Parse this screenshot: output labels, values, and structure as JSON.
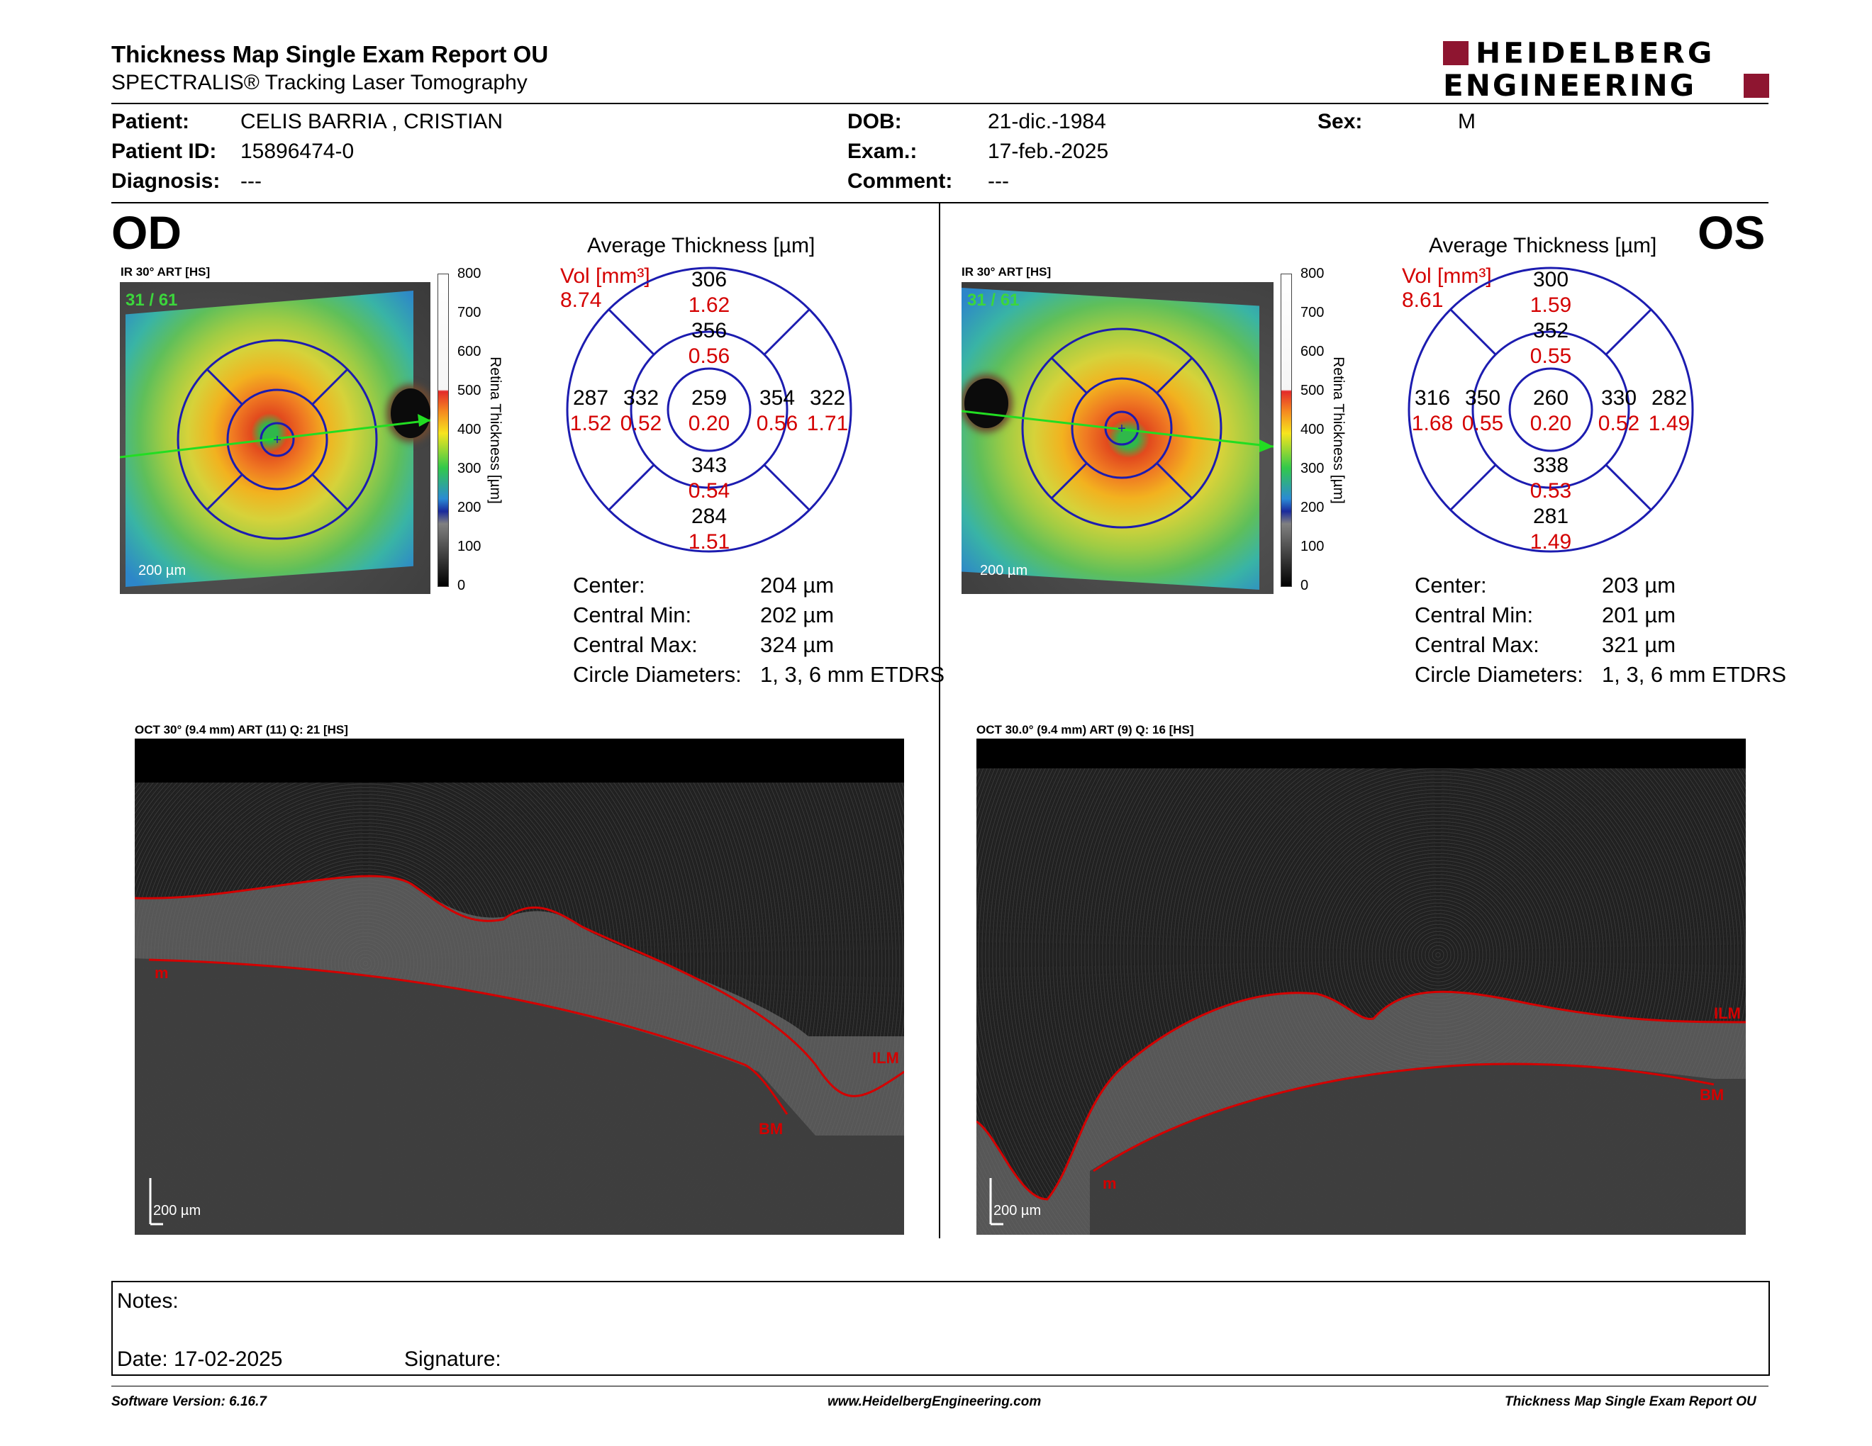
{
  "header": {
    "title": "Thickness Map Single Exam Report OU",
    "subtitle": "SPECTRALIS® Tracking Laser Tomography",
    "logo_line1": "HEIDELBERG",
    "logo_line2": "ENGINEERING"
  },
  "patient": {
    "patient_label": "Patient:",
    "patient_value": "CELIS BARRIA , CRISTIAN",
    "id_label": "Patient ID:",
    "id_value": "15896474-0",
    "diagnosis_label": "Diagnosis:",
    "diagnosis_value": "---",
    "dob_label": "DOB:",
    "dob_value": "21-dic.-1984",
    "exam_label": "Exam.:",
    "exam_value": "17-feb.-2025",
    "comment_label": "Comment:",
    "comment_value": "---",
    "sex_label": "Sex:",
    "sex_value": "M"
  },
  "colorbar": {
    "title": "Retina Thickness [µm]",
    "ticks": [
      "800",
      "700",
      "600",
      "500",
      "400",
      "300",
      "200",
      "100",
      "0"
    ]
  },
  "od": {
    "eye": "OD",
    "ir_label": "IR 30° ART [HS]",
    "frame": "31 / 61",
    "scale": "200 µm",
    "avg_title": "Average Thickness [µm]",
    "vol_label": "Vol [mm³]",
    "vol_value": "8.74",
    "grid": {
      "outer_sup": "306",
      "outer_sup_vol": "1.62",
      "inner_sup": "356",
      "inner_sup_vol": "0.56",
      "outer_left": "287",
      "outer_left_vol": "1.52",
      "inner_left": "332",
      "inner_left_vol": "0.52",
      "center": "259",
      "center_vol": "0.20",
      "inner_right": "354",
      "inner_right_vol": "0.56",
      "outer_right": "322",
      "outer_right_vol": "1.71",
      "inner_inf": "343",
      "inner_inf_vol": "0.54",
      "outer_inf": "284",
      "outer_inf_vol": "1.51"
    },
    "stats": {
      "center_label": "Center:",
      "center_value": "204 µm",
      "min_label": "Central Min:",
      "min_value": "202 µm",
      "max_label": "Central Max:",
      "max_value": "324 µm",
      "diam_label": "Circle Diameters:",
      "diam_value": "1, 3, 6 mm ETDRS"
    },
    "oct_label": "OCT 30° (9.4 mm) ART (11) Q: 21 [HS]",
    "oct_scale": "200 µm",
    "tag_ilm": "ILM",
    "tag_bm": "BM",
    "tag_m": "m"
  },
  "os": {
    "eye": "OS",
    "ir_label": "IR 30° ART [HS]",
    "frame": "31 / 61",
    "scale": "200 µm",
    "avg_title": "Average Thickness [µm]",
    "vol_label": "Vol [mm³]",
    "vol_value": "8.61",
    "grid": {
      "outer_sup": "300",
      "outer_sup_vol": "1.59",
      "inner_sup": "352",
      "inner_sup_vol": "0.55",
      "outer_left": "316",
      "outer_left_vol": "1.68",
      "inner_left": "350",
      "inner_left_vol": "0.55",
      "center": "260",
      "center_vol": "0.20",
      "inner_right": "330",
      "inner_right_vol": "0.52",
      "outer_right": "282",
      "outer_right_vol": "1.49",
      "inner_inf": "338",
      "inner_inf_vol": "0.53",
      "outer_inf": "281",
      "outer_inf_vol": "1.49"
    },
    "stats": {
      "center_label": "Center:",
      "center_value": "203 µm",
      "min_label": "Central Min:",
      "min_value": "201 µm",
      "max_label": "Central Max:",
      "max_value": "321 µm",
      "diam_label": "Circle Diameters:",
      "diam_value": "1, 3, 6 mm ETDRS"
    },
    "oct_label": "OCT 30.0° (9.4 mm) ART (9) Q: 16 [HS]",
    "oct_scale": "200 µm",
    "tag_ilm": "ILM",
    "tag_bm": "BM",
    "tag_m": "m"
  },
  "notes": {
    "notes_label": "Notes:",
    "date_label": "Date: 17-02-2025",
    "signature_label": "Signature:"
  },
  "footer": {
    "version": "Software Version: 6.16.7",
    "url": "www.HeidelbergEngineering.com",
    "report": "Thickness Map Single Exam Report OU"
  },
  "colors": {
    "accent_red": "#d40000",
    "grid_blue": "#1c1cb0",
    "logo_red": "#8e1530"
  }
}
